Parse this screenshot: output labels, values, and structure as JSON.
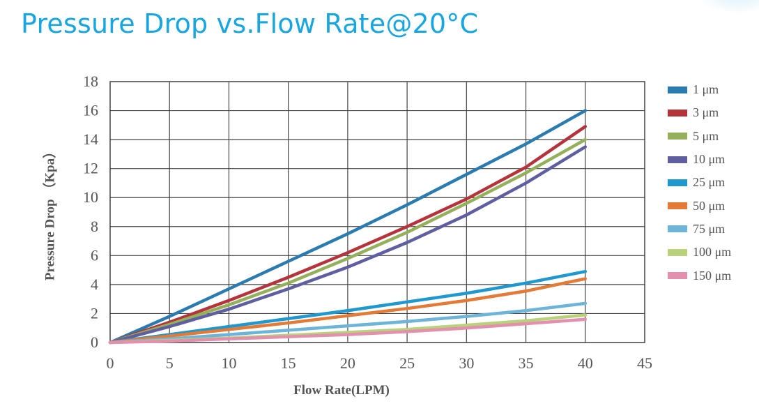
{
  "page": {
    "title": "Pressure Drop vs.Flow Rate@20°C"
  },
  "chart_data": {
    "type": "line",
    "title": "Pressure Drop vs.Flow Rate@20°C",
    "xlabel": "Flow Rate(LPM)",
    "ylabel": "Pressure Drop （Kpa）",
    "xlim": [
      0,
      45
    ],
    "ylim": [
      0,
      18
    ],
    "xticks": [
      0,
      5,
      10,
      15,
      20,
      25,
      30,
      35,
      40,
      45
    ],
    "yticks": [
      0,
      2,
      4,
      6,
      8,
      10,
      12,
      14,
      16,
      18
    ],
    "grid": true,
    "legend_position": "right",
    "x": [
      0,
      5,
      10,
      15,
      20,
      25,
      30,
      35,
      40
    ],
    "series": [
      {
        "name": "1 μm",
        "color": "#2a7bb0",
        "values": [
          0,
          1.8,
          3.7,
          5.6,
          7.5,
          9.5,
          11.6,
          13.7,
          16.0
        ]
      },
      {
        "name": "3 μm",
        "color": "#b5333b",
        "values": [
          0,
          1.4,
          2.9,
          4.5,
          6.2,
          8.0,
          9.9,
          12.1,
          14.9
        ]
      },
      {
        "name": "5 μm",
        "color": "#94b05a",
        "values": [
          0,
          1.25,
          2.6,
          4.1,
          5.8,
          7.6,
          9.6,
          11.7,
          14.0
        ]
      },
      {
        "name": "10 μm",
        "color": "#5f5ea1",
        "values": [
          0,
          1.1,
          2.3,
          3.7,
          5.2,
          6.9,
          8.8,
          11.0,
          13.5
        ]
      },
      {
        "name": "25 μm",
        "color": "#1f97cf",
        "values": [
          0,
          0.55,
          1.1,
          1.65,
          2.2,
          2.8,
          3.4,
          4.1,
          4.9
        ]
      },
      {
        "name": "50 μm",
        "color": "#e37a35",
        "values": [
          0,
          0.45,
          0.9,
          1.35,
          1.85,
          2.35,
          2.9,
          3.55,
          4.4
        ]
      },
      {
        "name": "75 μm",
        "color": "#6cb4d8",
        "values": [
          0,
          0.25,
          0.55,
          0.85,
          1.15,
          1.45,
          1.8,
          2.2,
          2.7
        ]
      },
      {
        "name": "100 μm",
        "color": "#b7d27a",
        "values": [
          0,
          0.15,
          0.3,
          0.5,
          0.7,
          0.9,
          1.2,
          1.5,
          1.9
        ]
      },
      {
        "name": "150 μm",
        "color": "#e38fae",
        "values": [
          0,
          0.1,
          0.25,
          0.4,
          0.55,
          0.75,
          1.0,
          1.3,
          1.6
        ]
      }
    ]
  }
}
